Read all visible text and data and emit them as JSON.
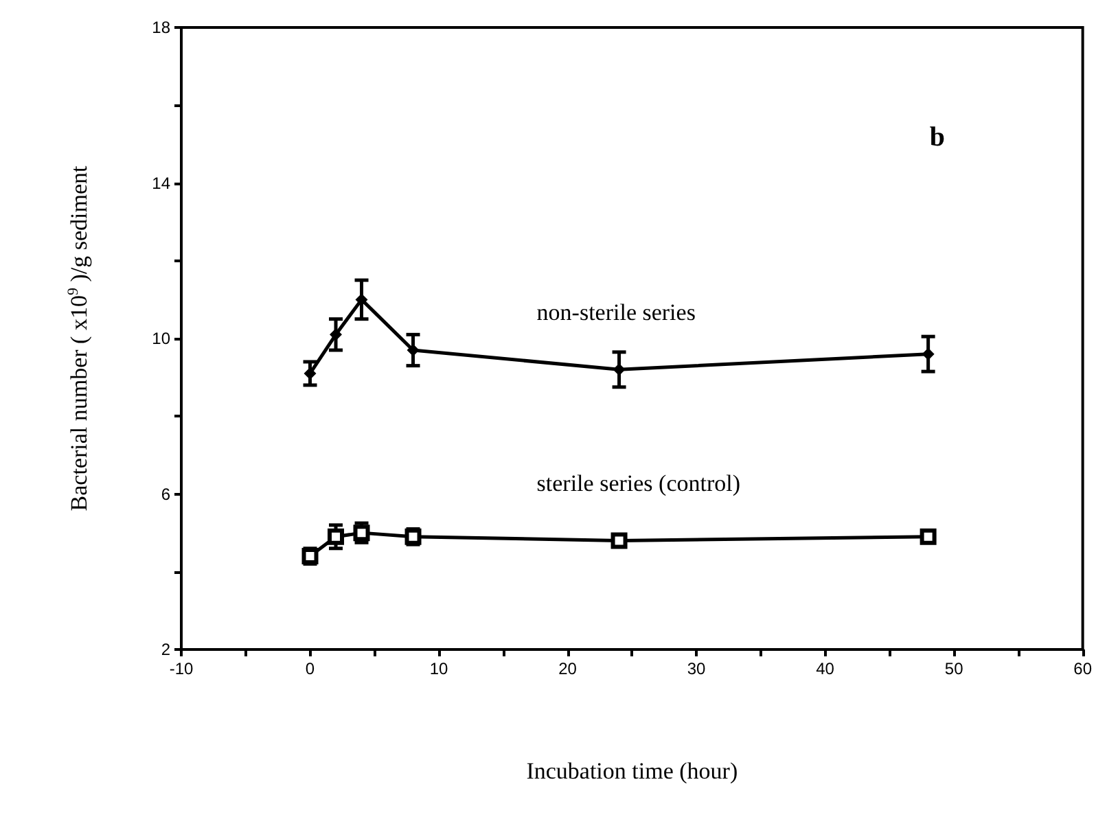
{
  "chart_data": {
    "type": "line",
    "xlabel": "Incubation time (hour)",
    "ylabel": "Bacterial number ( x10$^{9}$ )/g sediment",
    "annotations": [
      "b"
    ],
    "x": [
      0,
      2,
      4,
      8,
      24,
      48
    ],
    "series": [
      {
        "name": "non-sterile series",
        "color": "#000000",
        "marker": "diamond",
        "values": [
          9.1,
          10.1,
          11.0,
          9.7,
          9.2,
          9.6
        ],
        "errors": [
          0.3,
          0.4,
          0.5,
          0.4,
          0.45,
          0.45
        ]
      },
      {
        "name": "sterile series (control)",
        "color": "#000000",
        "marker": "square",
        "values": [
          4.4,
          4.9,
          5.0,
          4.9,
          4.8,
          4.9
        ],
        "errors": [
          0.2,
          0.3,
          0.25,
          0.2,
          0.15,
          0.15
        ]
      }
    ],
    "xlim": [
      -10,
      60
    ],
    "xticks": [
      -10,
      {
        "value": -5,
        "label": null
      },
      0,
      {
        "value": 5,
        "label": null
      },
      10,
      {
        "value": 15,
        "label": null
      },
      20,
      {
        "value": 25,
        "label": null
      },
      30,
      {
        "value": 35,
        "label": null
      },
      40,
      {
        "value": 45,
        "label": null
      },
      50,
      {
        "value": 55,
        "label": null
      },
      60
    ],
    "ylim": [
      2,
      18
    ],
    "yticks": [
      2,
      {
        "value": 4,
        "label": null
      },
      6,
      {
        "value": 8,
        "label": null
      },
      10,
      {
        "value": 12,
        "label": null
      },
      14,
      {
        "value": 16,
        "label": null
      },
      18
    ],
    "grid": false,
    "legend": false,
    "line_style": "solid"
  }
}
